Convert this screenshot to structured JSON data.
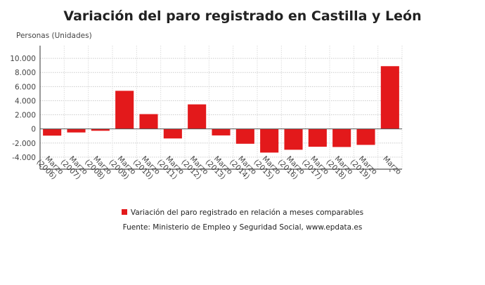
{
  "chart_data": {
    "type": "bar",
    "title": "Variación del paro registrado en Castilla y León",
    "ylabel": "Personas (Unidades)",
    "xlabel": "",
    "categories": [
      "Marzo (2006)",
      "Marzo (2007)",
      "Marzo (2008)",
      "Marzo (2009)",
      "Marzo (2010)",
      "Marzo (2011)",
      "Marzo (2012)",
      "Marzo (2013)",
      "Marzo (2014)",
      "Marzo (2015)",
      "Marzo (2016)",
      "Marzo (2017)",
      "Marzo (2018)",
      "Marzo (2019)",
      "Marzo"
    ],
    "series": [
      {
        "name": "Variación del paro registrado en relación a meses comparables",
        "color": "#e3191b",
        "values": [
          -950,
          -500,
          -260,
          5400,
          2100,
          -1350,
          3480,
          -920,
          -2100,
          -3350,
          -2950,
          -2520,
          -2560,
          -2260,
          8890
        ]
      }
    ],
    "yticks": [
      10000,
      8000,
      6000,
      4000,
      2000,
      0,
      -2000,
      -4000
    ],
    "ytick_labels": [
      "10.000",
      "8.000",
      "6.000",
      "4.000",
      "2.000",
      "0",
      "-2.000",
      "-4.000"
    ],
    "ylim": [
      -5700,
      11800
    ],
    "grid": true,
    "legend_position": "bottom",
    "source": "Fuente: Ministerio de Empleo y Seguridad Social, www.epdata.es"
  }
}
